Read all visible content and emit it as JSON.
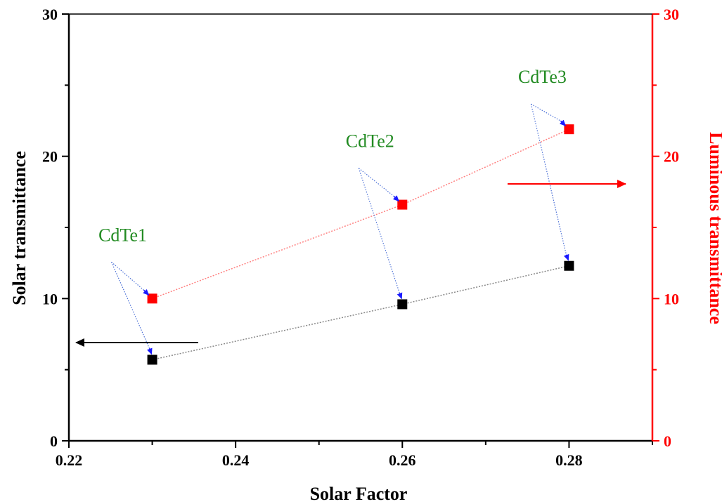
{
  "chart_data": {
    "type": "scatter",
    "xlabel": "Solar Factor",
    "ylabel": "Solar transmittance",
    "y2label": "Luminous transmittance",
    "xlim": [
      0.22,
      0.29
    ],
    "ylim": [
      0,
      30
    ],
    "y2lim": [
      0,
      30
    ],
    "xticks": [
      "0.22",
      "0.24",
      "0.26",
      "0.28"
    ],
    "yticks": [
      "0",
      "10",
      "20",
      "30"
    ],
    "y2ticks": [
      "0",
      "10",
      "20",
      "30"
    ],
    "series": [
      {
        "axis": "left",
        "color": "#000000",
        "x": [
          0.23,
          0.26,
          0.28
        ],
        "y": [
          5.7,
          9.6,
          12.3
        ]
      },
      {
        "axis": "right",
        "color": "#ff0000",
        "x": [
          0.23,
          0.26,
          0.28
        ],
        "y": [
          10.0,
          16.6,
          21.9
        ]
      }
    ],
    "annotations": [
      {
        "text": "CdTe1",
        "color": "#228b22"
      },
      {
        "text": "CdTe2",
        "color": "#228b22"
      },
      {
        "text": "CdTe3",
        "color": "#228b22"
      }
    ],
    "axis_arrows": [
      {
        "direction": "left",
        "color": "#000000"
      },
      {
        "direction": "right",
        "color": "#ff0000"
      }
    ],
    "grid": false
  }
}
